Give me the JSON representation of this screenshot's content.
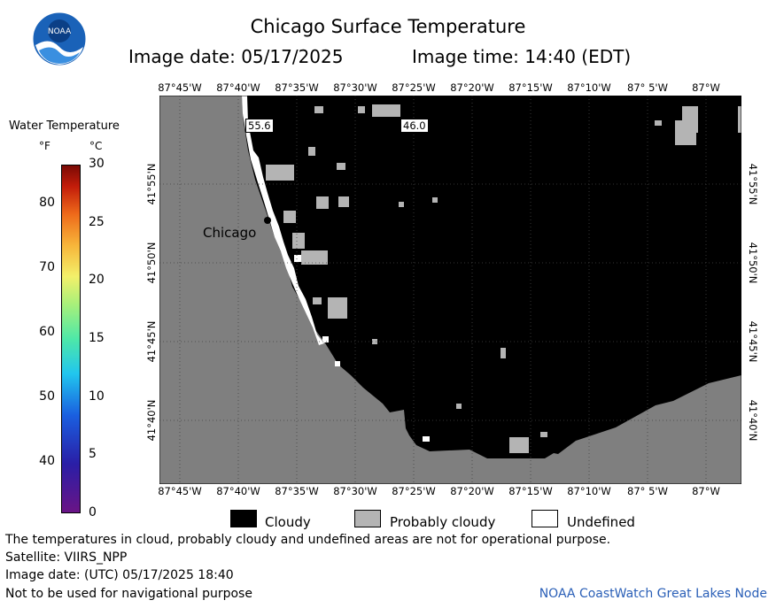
{
  "header": {
    "title": "Chicago Surface Temperature",
    "image_date": "Image date: 05/17/2025",
    "image_time": "Image time: 14:40 (EDT)",
    "logo_text": "NOAA"
  },
  "map": {
    "lon_labels": [
      "87°45'W",
      "87°40'W",
      "87°35'W",
      "87°30'W",
      "87°25'W",
      "87°20'W",
      "87°15'W",
      "87°10'W",
      "87° 5'W",
      "87°W"
    ],
    "lat_labels": [
      "41°55'N",
      "41°50'N",
      "41°45'N",
      "41°40'N"
    ],
    "city_label": "Chicago",
    "temperature_labels": [
      "55.6",
      "46.0"
    ],
    "colors": {
      "land": "#7f7f7f",
      "cloudy": "#000000",
      "probably_cloudy": "#b4b4b4",
      "undefined": "#ffffff"
    }
  },
  "colorbar": {
    "title": "Water Temperature",
    "unit_f": "°F",
    "unit_c": "°C",
    "fahrenheit_ticks": [
      "80",
      "70",
      "60",
      "50",
      "40"
    ],
    "celsius_ticks": [
      "30",
      "25",
      "20",
      "15",
      "10",
      "5",
      "0"
    ]
  },
  "legend": {
    "cloudy": "Cloudy",
    "probably_cloudy": "Probably cloudy",
    "undefined": "Undefined"
  },
  "footer": {
    "disclaimer": "The temperatures in cloud, probably cloudy and undefined areas are not for operational purpose.",
    "satellite": "Satellite: VIIRS_NPP",
    "utc_date": "Image date: (UTC) 05/17/2025  18:40",
    "navigation": "Not to be used for navigational purpose",
    "credit": "NOAA CoastWatch Great Lakes Node"
  }
}
